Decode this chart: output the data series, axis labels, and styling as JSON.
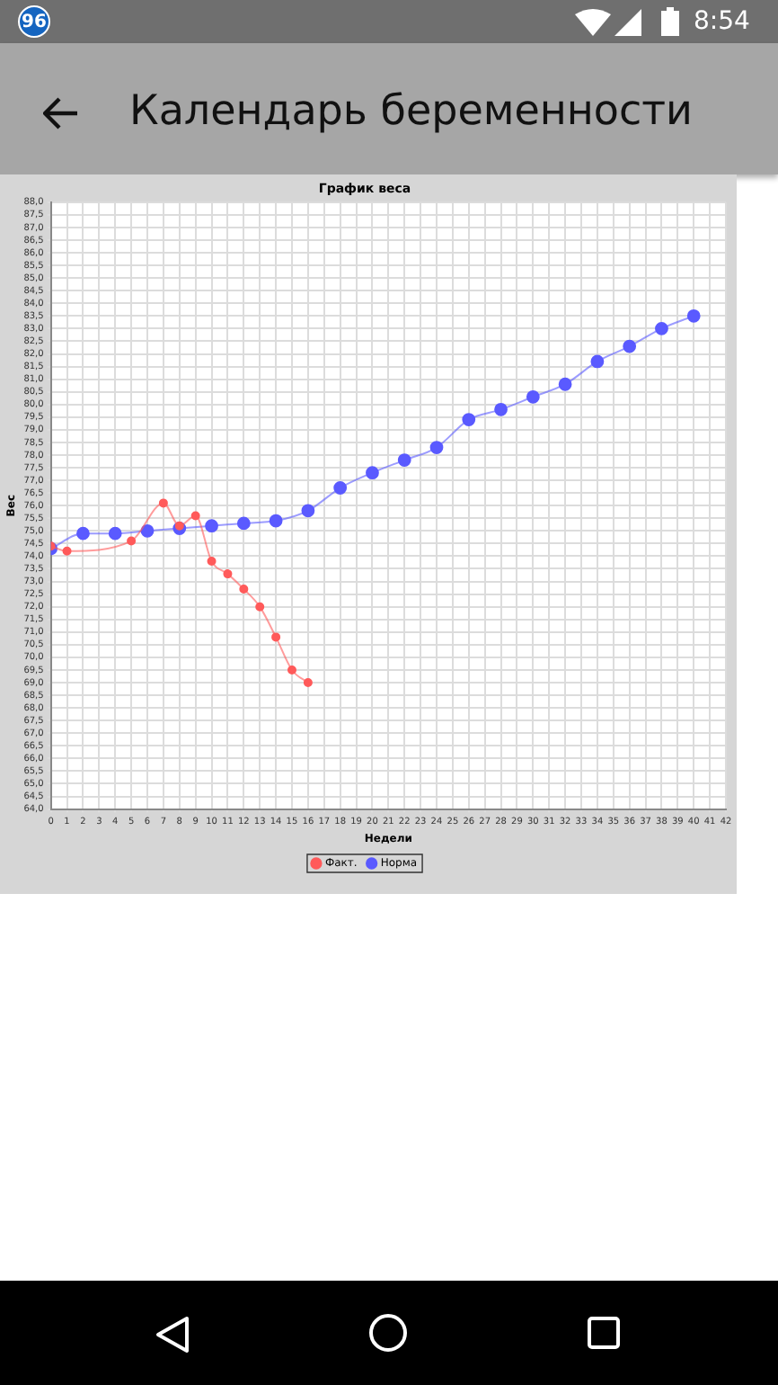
{
  "chart_data": {
    "type": "line",
    "title": "График веса",
    "xlabel": "Недели",
    "ylabel": "Вес",
    "annotations": [
      "96",
      "8:54",
      "Календарь беременности"
    ],
    "series": [
      {
        "name": "Факт.",
        "color": "#ff5a5a",
        "x": [
          0,
          1,
          5,
          7,
          8,
          9,
          10,
          11,
          12,
          13,
          14,
          15,
          16
        ],
        "values": [
          74.4,
          74.2,
          74.6,
          76.1,
          75.2,
          75.6,
          73.8,
          73.3,
          72.7,
          72.0,
          70.8,
          69.5,
          69.0
        ]
      },
      {
        "name": "Норма",
        "color": "#5a5aff",
        "x": [
          0,
          2,
          4,
          6,
          8,
          10,
          12,
          14,
          16,
          18,
          20,
          22,
          24,
          26,
          28,
          30,
          32,
          34,
          36,
          38,
          40
        ],
        "values": [
          74.3,
          74.9,
          74.9,
          75.0,
          75.1,
          75.2,
          75.3,
          75.4,
          75.8,
          76.7,
          77.3,
          77.8,
          78.3,
          79.4,
          79.8,
          80.3,
          80.8,
          81.7,
          82.3,
          83.0,
          83.5
        ]
      }
    ],
    "xlim": [
      0,
      42
    ],
    "xticks": [
      0,
      1,
      2,
      3,
      4,
      5,
      6,
      7,
      8,
      9,
      10,
      11,
      12,
      13,
      14,
      15,
      16,
      17,
      18,
      19,
      20,
      21,
      22,
      23,
      24,
      25,
      26,
      27,
      28,
      29,
      30,
      31,
      32,
      33,
      34,
      35,
      36,
      37,
      38,
      39,
      40,
      41,
      42
    ],
    "ylim": [
      64,
      88
    ],
    "yticks": [
      {
        "value": 64,
        "label": "64,0"
      },
      {
        "value": 64.5,
        "label": "64,5"
      },
      {
        "value": 65,
        "label": "65,0"
      },
      {
        "value": 65.5,
        "label": "65,5"
      },
      {
        "value": 66,
        "label": "66,0"
      },
      {
        "value": 66.5,
        "label": "66,5"
      },
      {
        "value": 67,
        "label": "67,0"
      },
      {
        "value": 67.5,
        "label": "67,5"
      },
      {
        "value": 68,
        "label": "68,0"
      },
      {
        "value": 68.5,
        "label": "68,5"
      },
      {
        "value": 69,
        "label": "69,0"
      },
      {
        "value": 69.5,
        "label": "69,5"
      },
      {
        "value": 70,
        "label": "70,0"
      },
      {
        "value": 70.5,
        "label": "70,5"
      },
      {
        "value": 71,
        "label": "71,0"
      },
      {
        "value": 71.5,
        "label": "71,5"
      },
      {
        "value": 72,
        "label": "72,0"
      },
      {
        "value": 72.5,
        "label": "72,5"
      },
      {
        "value": 73,
        "label": "73,0"
      },
      {
        "value": 73.5,
        "label": "73,5"
      },
      {
        "value": 74,
        "label": "74,0"
      },
      {
        "value": 74.5,
        "label": "74,5"
      },
      {
        "value": 75,
        "label": "75,0"
      },
      {
        "value": 75.5,
        "label": "75,5"
      },
      {
        "value": 76,
        "label": "76,0"
      },
      {
        "value": 76.5,
        "label": "76,5"
      },
      {
        "value": 77,
        "label": "77,0"
      },
      {
        "value": 77.5,
        "label": "77,5"
      },
      {
        "value": 78,
        "label": "78,0"
      },
      {
        "value": 78.5,
        "label": "78,5"
      },
      {
        "value": 79,
        "label": "79,0"
      },
      {
        "value": 79.5,
        "label": "79,5"
      },
      {
        "value": 80,
        "label": "80,0"
      },
      {
        "value": 80.5,
        "label": "80,5"
      },
      {
        "value": 81,
        "label": "81,0"
      },
      {
        "value": 81.5,
        "label": "81,5"
      },
      {
        "value": 82,
        "label": "82,0"
      },
      {
        "value": 82.5,
        "label": "82,5"
      },
      {
        "value": 83,
        "label": "83,0"
      },
      {
        "value": 83.5,
        "label": "83,5"
      },
      {
        "value": 84,
        "label": "84,0"
      },
      {
        "value": 84.5,
        "label": "84,5"
      },
      {
        "value": 85,
        "label": "85,0"
      },
      {
        "value": 85.5,
        "label": "85,5"
      },
      {
        "value": 86,
        "label": "86,0"
      },
      {
        "value": 86.5,
        "label": "86,5"
      },
      {
        "value": 87,
        "label": "87,0"
      },
      {
        "value": 87.5,
        "label": "87,5"
      },
      {
        "value": 88,
        "label": "88,0"
      }
    ],
    "grid": true,
    "legend": "bottom",
    "marker": "circle",
    "line_style": "solid"
  }
}
